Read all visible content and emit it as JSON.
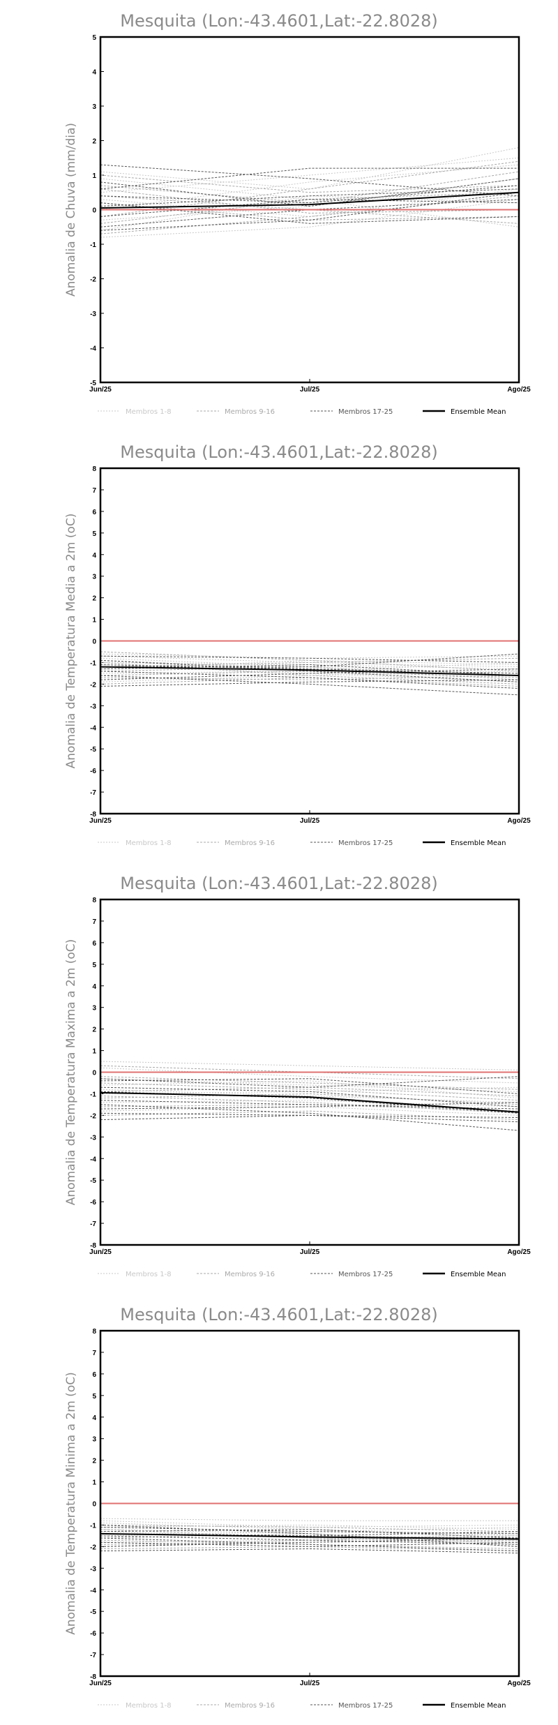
{
  "legend": [
    {
      "label": "Membros 1-8",
      "color": "#c8c8c8",
      "dash": "2,2",
      "width": 1
    },
    {
      "label": "Membros 9-16",
      "color": "#a8a8a8",
      "dash": "3,2",
      "width": 1
    },
    {
      "label": "Membros 17-25",
      "color": "#555555",
      "dash": "3,2",
      "width": 1
    },
    {
      "label": "Ensemble Mean",
      "color": "#000000",
      "dash": "",
      "width": 2
    }
  ],
  "colors": {
    "zero_line": "#e07070",
    "frame": "#000000",
    "title": "#8a8a8a"
  },
  "chart_data": [
    {
      "type": "line",
      "title": "Mesquita (Lon:-43.4601,Lat:-22.8028)",
      "ylabel": "Anomalia de Chuva (mm/dia)",
      "categories": [
        "Jun/25",
        "Jul/25",
        "Ago/25"
      ],
      "ylim": [
        -5,
        5
      ],
      "yticks": [
        -5,
        -4,
        -3,
        -2,
        -1,
        0,
        1,
        2,
        3,
        4,
        5
      ],
      "series": [
        {
          "group": 1,
          "values": [
            1.1,
            0.6,
            1.8
          ]
        },
        {
          "group": 1,
          "values": [
            0.5,
            1.0,
            1.5
          ]
        },
        {
          "group": 1,
          "values": [
            -0.3,
            0.1,
            0.9
          ]
        },
        {
          "group": 1,
          "values": [
            0.3,
            -0.2,
            0.6
          ]
        },
        {
          "group": 1,
          "values": [
            -0.6,
            0.4,
            0.2
          ]
        },
        {
          "group": 1,
          "values": [
            0.9,
            0.3,
            -0.5
          ]
        },
        {
          "group": 1,
          "values": [
            -0.8,
            -0.5,
            0.3
          ]
        },
        {
          "group": 1,
          "values": [
            0.0,
            0.8,
            1.3
          ]
        },
        {
          "group": 2,
          "values": [
            0.7,
            0.2,
            1.1
          ]
        },
        {
          "group": 2,
          "values": [
            -0.4,
            0.3,
            0.5
          ]
        },
        {
          "group": 2,
          "values": [
            0.2,
            -0.3,
            -0.2
          ]
        },
        {
          "group": 2,
          "values": [
            -0.7,
            -0.2,
            0.4
          ]
        },
        {
          "group": 2,
          "values": [
            1.0,
            0.5,
            0.7
          ]
        },
        {
          "group": 2,
          "values": [
            0.4,
            0.0,
            -0.4
          ]
        },
        {
          "group": 2,
          "values": [
            -0.2,
            0.6,
            1.4
          ]
        },
        {
          "group": 2,
          "values": [
            0.6,
            -0.1,
            0.0
          ]
        },
        {
          "group": 3,
          "values": [
            1.3,
            0.9,
            0.4
          ]
        },
        {
          "group": 3,
          "values": [
            0.6,
            1.2,
            1.2
          ]
        },
        {
          "group": 3,
          "values": [
            0.8,
            0.1,
            0.9
          ]
        },
        {
          "group": 3,
          "values": [
            0.1,
            0.4,
            0.6
          ]
        },
        {
          "group": 3,
          "values": [
            -0.5,
            0.0,
            0.3
          ]
        },
        {
          "group": 3,
          "values": [
            0.2,
            -0.4,
            -0.2
          ]
        },
        {
          "group": 3,
          "values": [
            -0.6,
            -0.3,
            0.5
          ]
        },
        {
          "group": 3,
          "values": [
            0.4,
            0.2,
            0.7
          ]
        },
        {
          "group": 3,
          "values": [
            -0.2,
            0.3,
            0.2
          ]
        },
        {
          "group": 0,
          "values": [
            0.05,
            0.15,
            0.5
          ]
        }
      ],
      "zero_line": 0
    },
    {
      "type": "line",
      "title": "Mesquita (Lon:-43.4601,Lat:-22.8028)",
      "ylabel": "Anomalia de Temperatura Media a 2m (oC)",
      "categories": [
        "Jun/25",
        "Jul/25",
        "Ago/25"
      ],
      "ylim": [
        -8,
        8
      ],
      "yticks": [
        -8,
        -7,
        -6,
        -5,
        -4,
        -3,
        -2,
        -1,
        0,
        1,
        2,
        3,
        4,
        5,
        6,
        7,
        8
      ],
      "series": [
        {
          "group": 1,
          "values": [
            -0.6,
            -0.8,
            -0.7
          ]
        },
        {
          "group": 1,
          "values": [
            -1.0,
            -1.1,
            -1.3
          ]
        },
        {
          "group": 1,
          "values": [
            -1.5,
            -1.4,
            -1.0
          ]
        },
        {
          "group": 1,
          "values": [
            -0.8,
            -1.2,
            -1.6
          ]
        },
        {
          "group": 1,
          "values": [
            -1.3,
            -0.9,
            -1.1
          ]
        },
        {
          "group": 1,
          "values": [
            -1.9,
            -1.6,
            -1.4
          ]
        },
        {
          "group": 1,
          "values": [
            -1.1,
            -1.5,
            -1.9
          ]
        },
        {
          "group": 1,
          "values": [
            -0.7,
            -1.0,
            -1.2
          ]
        },
        {
          "group": 2,
          "values": [
            -0.9,
            -1.3,
            -1.5
          ]
        },
        {
          "group": 2,
          "values": [
            -1.4,
            -1.2,
            -1.8
          ]
        },
        {
          "group": 2,
          "values": [
            -1.7,
            -1.8,
            -1.6
          ]
        },
        {
          "group": 2,
          "values": [
            -1.2,
            -1.0,
            -0.8
          ]
        },
        {
          "group": 2,
          "values": [
            -2.0,
            -1.7,
            -2.1
          ]
        },
        {
          "group": 2,
          "values": [
            -0.5,
            -0.9,
            -1.4
          ]
        },
        {
          "group": 2,
          "values": [
            -1.6,
            -1.4,
            -1.7
          ]
        },
        {
          "group": 2,
          "values": [
            -1.0,
            -1.6,
            -2.0
          ]
        },
        {
          "group": 3,
          "values": [
            -0.7,
            -0.8,
            -1.0
          ]
        },
        {
          "group": 3,
          "values": [
            -1.1,
            -1.3,
            -1.5
          ]
        },
        {
          "group": 3,
          "values": [
            -1.8,
            -1.5,
            -1.3
          ]
        },
        {
          "group": 3,
          "values": [
            -1.4,
            -1.7,
            -2.2
          ]
        },
        {
          "group": 3,
          "values": [
            -2.1,
            -1.9,
            -1.8
          ]
        },
        {
          "group": 3,
          "values": [
            -1.3,
            -1.1,
            -1.6
          ]
        },
        {
          "group": 3,
          "values": [
            -0.9,
            -1.4,
            -1.9
          ]
        },
        {
          "group": 3,
          "values": [
            -1.6,
            -2.0,
            -2.5
          ]
        },
        {
          "group": 3,
          "values": [
            -1.2,
            -1.2,
            -0.6
          ]
        },
        {
          "group": 0,
          "values": [
            -1.2,
            -1.35,
            -1.6
          ]
        }
      ],
      "zero_line": 0
    },
    {
      "type": "line",
      "title": "Mesquita (Lon:-43.4601,Lat:-22.8028)",
      "ylabel": "Anomalia de Temperatura Maxima a 2m (oC)",
      "categories": [
        "Jun/25",
        "Jul/25",
        "Ago/25"
      ],
      "ylim": [
        -8,
        8
      ],
      "yticks": [
        -8,
        -7,
        -6,
        -5,
        -4,
        -3,
        -2,
        -1,
        0,
        1,
        2,
        3,
        4,
        5,
        6,
        7,
        8
      ],
      "series": [
        {
          "group": 1,
          "values": [
            0.5,
            0.3,
            0.1
          ]
        },
        {
          "group": 1,
          "values": [
            0.2,
            -0.2,
            -0.5
          ]
        },
        {
          "group": 1,
          "values": [
            -0.3,
            -0.6,
            -0.9
          ]
        },
        {
          "group": 1,
          "values": [
            -0.6,
            -0.4,
            -1.2
          ]
        },
        {
          "group": 1,
          "values": [
            -1.0,
            -0.9,
            -0.7
          ]
        },
        {
          "group": 1,
          "values": [
            -1.4,
            -1.3,
            -1.6
          ]
        },
        {
          "group": 1,
          "values": [
            -0.8,
            -1.1,
            -1.4
          ]
        },
        {
          "group": 1,
          "values": [
            -1.8,
            -1.6,
            -2.0
          ]
        },
        {
          "group": 2,
          "values": [
            0.3,
            0.0,
            -0.3
          ]
        },
        {
          "group": 2,
          "values": [
            -0.2,
            -0.5,
            -0.8
          ]
        },
        {
          "group": 2,
          "values": [
            -0.9,
            -0.7,
            -1.1
          ]
        },
        {
          "group": 2,
          "values": [
            -1.2,
            -1.0,
            -1.5
          ]
        },
        {
          "group": 2,
          "values": [
            -1.6,
            -1.5,
            -1.8
          ]
        },
        {
          "group": 2,
          "values": [
            -0.5,
            -0.8,
            -1.3
          ]
        },
        {
          "group": 2,
          "values": [
            -2.0,
            -1.8,
            -2.2
          ]
        },
        {
          "group": 2,
          "values": [
            -1.1,
            -1.4,
            -1.9
          ]
        },
        {
          "group": 3,
          "values": [
            -0.3,
            -0.7,
            -0.2
          ]
        },
        {
          "group": 3,
          "values": [
            -0.7,
            -0.9,
            -1.6
          ]
        },
        {
          "group": 3,
          "values": [
            -1.3,
            -1.5,
            -1.7
          ]
        },
        {
          "group": 3,
          "values": [
            -1.9,
            -2.0,
            -2.1
          ]
        },
        {
          "group": 3,
          "values": [
            -2.2,
            -2.0,
            -2.3
          ]
        },
        {
          "group": 3,
          "values": [
            -1.5,
            -1.9,
            -2.7
          ]
        },
        {
          "group": 3,
          "values": [
            -0.9,
            -1.2,
            -1.9
          ]
        },
        {
          "group": 3,
          "values": [
            -1.7,
            -1.6,
            -1.4
          ]
        },
        {
          "group": 3,
          "values": [
            -0.4,
            -0.3,
            -1.0
          ]
        },
        {
          "group": 0,
          "values": [
            -0.95,
            -1.15,
            -1.85
          ]
        }
      ],
      "zero_line": 0
    },
    {
      "type": "line",
      "title": "Mesquita (Lon:-43.4601,Lat:-22.8028)",
      "ylabel": "Anomalia de Temperatura Minima a 2m (oC)",
      "categories": [
        "Jun/25",
        "Jul/25",
        "Ago/25"
      ],
      "ylim": [
        -8,
        8
      ],
      "yticks": [
        -8,
        -7,
        -6,
        -5,
        -4,
        -3,
        -2,
        -1,
        0,
        1,
        2,
        3,
        4,
        5,
        6,
        7,
        8
      ],
      "series": [
        {
          "group": 1,
          "values": [
            -0.7,
            -0.8,
            -0.8
          ]
        },
        {
          "group": 1,
          "values": [
            -1.1,
            -1.0,
            -1.2
          ]
        },
        {
          "group": 1,
          "values": [
            -1.5,
            -1.3,
            -1.1
          ]
        },
        {
          "group": 1,
          "values": [
            -0.9,
            -1.2,
            -1.5
          ]
        },
        {
          "group": 1,
          "values": [
            -1.3,
            -1.6,
            -1.7
          ]
        },
        {
          "group": 1,
          "values": [
            -1.8,
            -1.7,
            -1.4
          ]
        },
        {
          "group": 1,
          "values": [
            -1.2,
            -1.4,
            -1.9
          ]
        },
        {
          "group": 1,
          "values": [
            -0.8,
            -1.1,
            -1.0
          ]
        },
        {
          "group": 2,
          "values": [
            -1.0,
            -1.1,
            -1.3
          ]
        },
        {
          "group": 2,
          "values": [
            -1.4,
            -1.5,
            -1.6
          ]
        },
        {
          "group": 2,
          "values": [
            -1.9,
            -1.8,
            -1.7
          ]
        },
        {
          "group": 2,
          "values": [
            -1.6,
            -1.4,
            -2.0
          ]
        },
        {
          "group": 2,
          "values": [
            -2.1,
            -2.0,
            -2.2
          ]
        },
        {
          "group": 2,
          "values": [
            -1.2,
            -1.6,
            -1.8
          ]
        },
        {
          "group": 2,
          "values": [
            -1.7,
            -1.9,
            -2.1
          ]
        },
        {
          "group": 2,
          "values": [
            -2.0,
            -1.7,
            -1.5
          ]
        },
        {
          "group": 3,
          "values": [
            -1.1,
            -1.3,
            -1.4
          ]
        },
        {
          "group": 3,
          "values": [
            -1.5,
            -1.7,
            -1.9
          ]
        },
        {
          "group": 3,
          "values": [
            -2.2,
            -2.1,
            -2.3
          ]
        },
        {
          "group": 3,
          "values": [
            -1.3,
            -1.2,
            -1.6
          ]
        },
        {
          "group": 3,
          "values": [
            -1.8,
            -2.0,
            -1.8
          ]
        },
        {
          "group": 3,
          "values": [
            -1.0,
            -1.4,
            -2.0
          ]
        },
        {
          "group": 3,
          "values": [
            -2.0,
            -1.8,
            -1.6
          ]
        },
        {
          "group": 3,
          "values": [
            -1.6,
            -1.9,
            -2.2
          ]
        },
        {
          "group": 3,
          "values": [
            -1.4,
            -1.5,
            -1.3
          ]
        },
        {
          "group": 0,
          "values": [
            -1.4,
            -1.55,
            -1.65
          ]
        }
      ],
      "zero_line": 0
    }
  ]
}
